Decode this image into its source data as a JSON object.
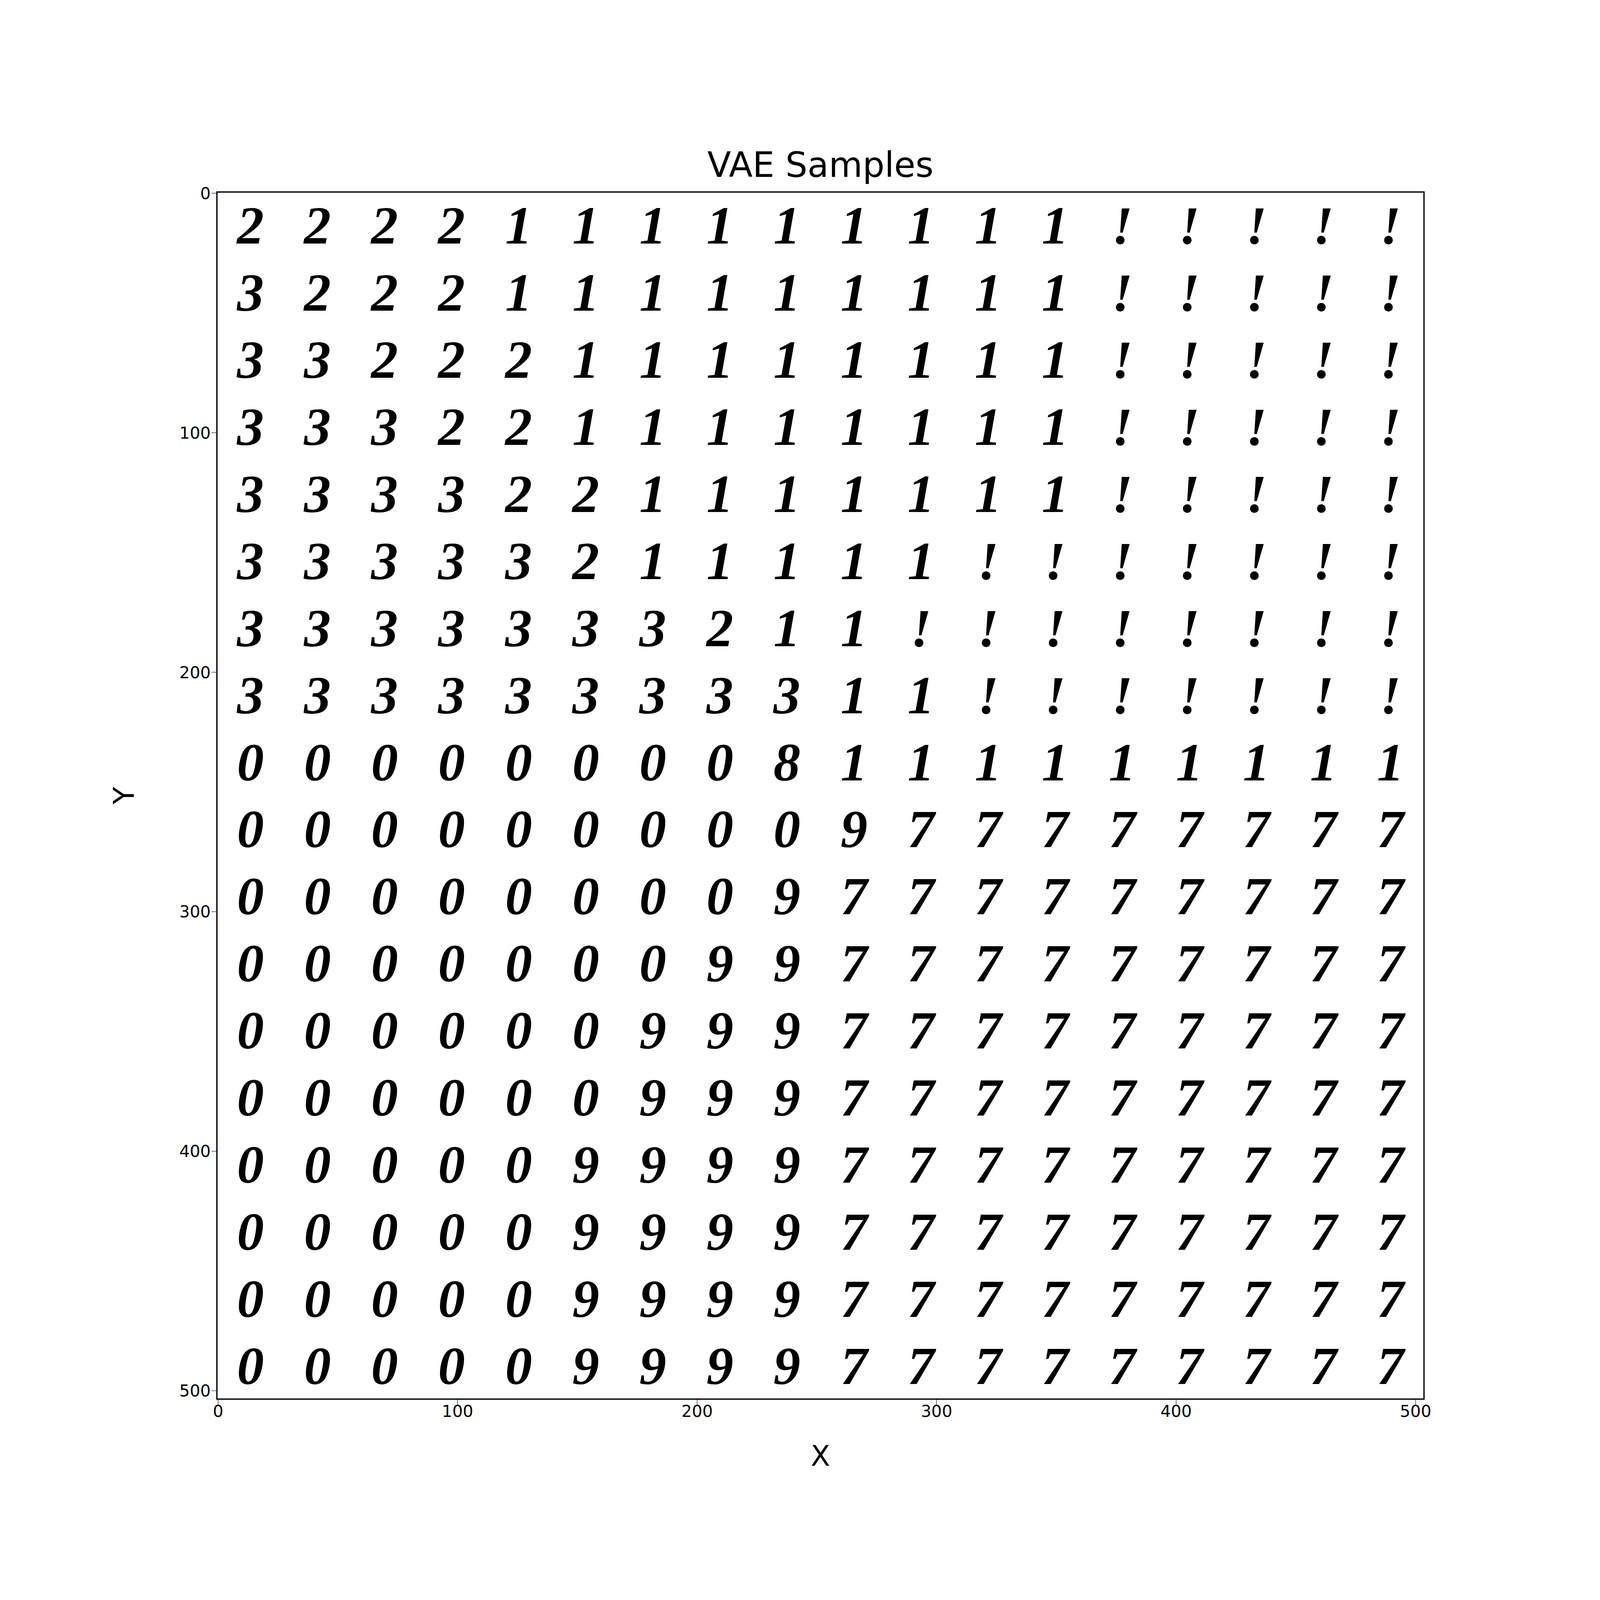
{
  "chart_data": {
    "type": "image",
    "title": "VAE Samples",
    "x_label": "X",
    "y_label": "Y",
    "xlim": [
      -0.5,
      503.5
    ],
    "ylim": [
      503.5,
      -0.5
    ],
    "xticks": [
      0,
      100,
      200,
      300,
      400,
      500
    ],
    "yticks": [
      0,
      100,
      200,
      300,
      400,
      500
    ],
    "color": "#000000",
    "cells": [
      "2222111111111!!!!!",
      "3222111111111!!!!!",
      "3322211111111!!!!!",
      "3332211111111!!!!!",
      "3333221111111!!!!!",
      "33333211111!!!!!!!",
      "3333333211!!!!!!!!",
      "33333333311!!!!!!!",
      "000000008111111111",
      "000000000977777777",
      "000000009777777777",
      "000000099777777777",
      "000000999777777777",
      "000000999777777777",
      "000009999777777777",
      "000009999777777777",
      "000009999777777777",
      "000009999777777777"
    ]
  }
}
